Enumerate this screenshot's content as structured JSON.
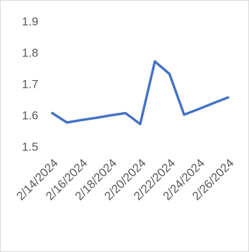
{
  "chart_data": {
    "type": "line",
    "categories": [
      "2/14/2024",
      null,
      "2/16/2024",
      null,
      "2/18/2024",
      null,
      "2/20/2024",
      null,
      "2/22/2024",
      null,
      "2/24/2024",
      null,
      "2/26/2024"
    ],
    "series": [
      {
        "color": "#4472c4",
        "values": [
          1.61,
          1.58,
          1.588,
          1.595,
          1.603,
          1.61,
          1.575,
          1.775,
          1.735,
          1.605,
          1.623,
          1.642,
          1.66
        ]
      }
    ],
    "ylim": [
      1.5,
      1.9
    ],
    "yticks": [
      1.5,
      1.6,
      1.7,
      1.8,
      1.9
    ],
    "grid": false
  }
}
